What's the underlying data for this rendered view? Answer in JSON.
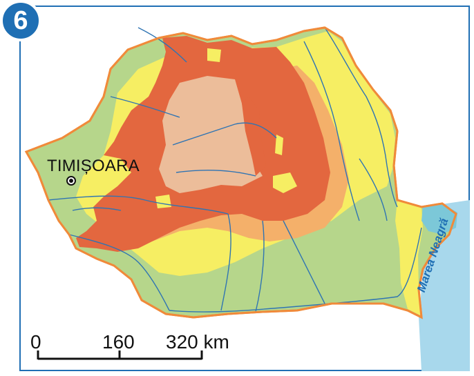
{
  "badge": {
    "number": "6"
  },
  "city": {
    "name": "TIMIȘOARA"
  },
  "sea": {
    "label": "Marea Neagră"
  },
  "scale_bar": {
    "ticks": [
      "0",
      "160",
      "320 km"
    ]
  },
  "colors": {
    "border": "#1f6fb4",
    "lowland": "#b6d68b",
    "hills": "#f6ee63",
    "plateau": "#f4b06a",
    "mountains": "#e3673f",
    "depression": "#ecbd9a",
    "sea": "#a8d8ec",
    "rivers": "#2f74b3",
    "outline": "#f08a3a"
  }
}
